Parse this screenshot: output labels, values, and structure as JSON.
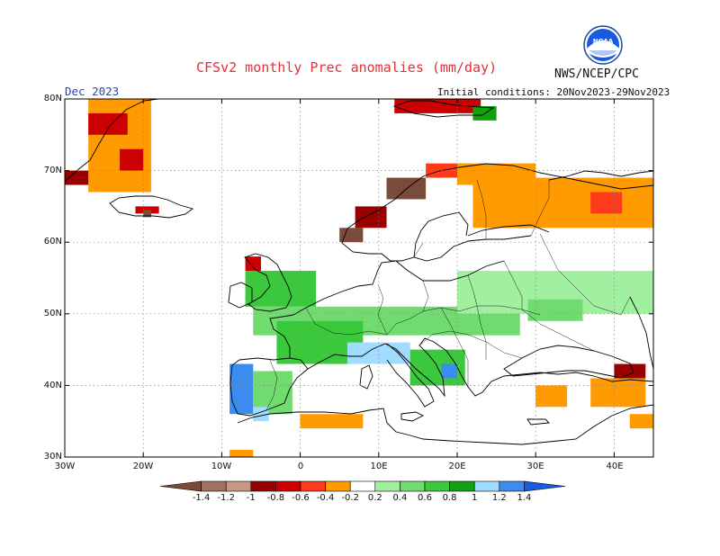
{
  "header": {
    "title": "CFSv2 monthly Prec anomalies (mm/day)",
    "agency": "NWS/NCEP/CPC",
    "month": "Dec 2023",
    "initial_conditions": "Initial conditions: 20Nov2023-29Nov2023",
    "logo_text": "NOAA"
  },
  "map": {
    "lat_range": [
      30,
      80
    ],
    "lon_range": [
      -30,
      45
    ],
    "lat_labels": [
      "80N",
      "70N",
      "60N",
      "50N",
      "40N",
      "30N"
    ],
    "lon_labels": [
      "30W",
      "20W",
      "10W",
      "0",
      "10E",
      "20E",
      "30E",
      "40E"
    ],
    "grid": true
  },
  "legend": {
    "labels": [
      "-1.4",
      "-1.2",
      "-1",
      "-0.8",
      "-0.6",
      "-0.4",
      "-0.2",
      "0.2",
      "0.4",
      "0.6",
      "0.8",
      "1",
      "1.2",
      "1.4"
    ],
    "colors": [
      "#7a4a3a",
      "#a07060",
      "#c89880",
      "#9a0000",
      "#cc0000",
      "#ff3a1a",
      "#ff9a00",
      "#ffffff",
      "#a0f0a0",
      "#70dc70",
      "#3cc83c",
      "#10a010",
      "#a0dcff",
      "#3c8cf0",
      "#1a5adc"
    ]
  },
  "anomaly_regions": [
    {
      "lon": [
        -27,
        -19
      ],
      "lat": [
        67,
        80
      ],
      "color": "#ff9a00"
    },
    {
      "lon": [
        -27,
        -22
      ],
      "lat": [
        75,
        78
      ],
      "color": "#cc0000"
    },
    {
      "lon": [
        -23,
        -20
      ],
      "lat": [
        70,
        73
      ],
      "color": "#cc0000"
    },
    {
      "lon": [
        -30,
        -27
      ],
      "lat": [
        68,
        70
      ],
      "color": "#9a0000"
    },
    {
      "lon": [
        -21,
        -18
      ],
      "lat": [
        64,
        65
      ],
      "color": "#cc0000"
    },
    {
      "lon": [
        -20,
        -19
      ],
      "lat": [
        63.5,
        64.5
      ],
      "color": "#7a4a3a"
    },
    {
      "lon": [
        -7,
        -5
      ],
      "lat": [
        56,
        58
      ],
      "color": "#cc0000"
    },
    {
      "lon": [
        5,
        8
      ],
      "lat": [
        60,
        62
      ],
      "color": "#7a4a3a"
    },
    {
      "lon": [
        7,
        11
      ],
      "lat": [
        62,
        65
      ],
      "color": "#9a0000"
    },
    {
      "lon": [
        11,
        16
      ],
      "lat": [
        66,
        69
      ],
      "color": "#7a4a3a"
    },
    {
      "lon": [
        16,
        22
      ],
      "lat": [
        69,
        71
      ],
      "color": "#ff3a1a"
    },
    {
      "lon": [
        20,
        30
      ],
      "lat": [
        68,
        71
      ],
      "color": "#ff9a00"
    },
    {
      "lon": [
        24,
        29
      ],
      "lat": [
        62,
        66
      ],
      "color": "#ff3a1a"
    },
    {
      "lon": [
        22,
        45
      ],
      "lat": [
        62,
        69
      ],
      "color": "#ff9a00"
    },
    {
      "lon": [
        37,
        41
      ],
      "lat": [
        64,
        67
      ],
      "color": "#ff3a1a"
    },
    {
      "lon": [
        12,
        23
      ],
      "lat": [
        78,
        80
      ],
      "color": "#cc0000"
    },
    {
      "lon": [
        22,
        25
      ],
      "lat": [
        77,
        79
      ],
      "color": "#10a010"
    },
    {
      "lon": [
        -7,
        2
      ],
      "lat": [
        51,
        56
      ],
      "color": "#3cc83c"
    },
    {
      "lon": [
        -6,
        28
      ],
      "lat": [
        47,
        51
      ],
      "color": "#70dc70"
    },
    {
      "lon": [
        -3,
        8
      ],
      "lat": [
        43,
        49
      ],
      "color": "#3cc83c"
    },
    {
      "lon": [
        6,
        14
      ],
      "lat": [
        43,
        46
      ],
      "color": "#a0dcff"
    },
    {
      "lon": [
        14,
        21
      ],
      "lat": [
        40,
        45
      ],
      "color": "#3cc83c"
    },
    {
      "lon": [
        18,
        20
      ],
      "lat": [
        41,
        43
      ],
      "color": "#3c8cf0"
    },
    {
      "lon": [
        20,
        45
      ],
      "lat": [
        50,
        56
      ],
      "color": "#a0f0a0"
    },
    {
      "lon": [
        29,
        36
      ],
      "lat": [
        49,
        52
      ],
      "color": "#70dc70"
    },
    {
      "lon": [
        -9,
        -6
      ],
      "lat": [
        36,
        43
      ],
      "color": "#3c8cf0"
    },
    {
      "lon": [
        -6,
        -1
      ],
      "lat": [
        36,
        42
      ],
      "color": "#70dc70"
    },
    {
      "lon": [
        -6,
        -4
      ],
      "lat": [
        35,
        37
      ],
      "color": "#a0dcff"
    },
    {
      "lon": [
        0,
        8
      ],
      "lat": [
        34,
        36
      ],
      "color": "#ff9a00"
    },
    {
      "lon": [
        30,
        34
      ],
      "lat": [
        37,
        40
      ],
      "color": "#ff9a00"
    },
    {
      "lon": [
        37,
        44
      ],
      "lat": [
        37,
        41
      ],
      "color": "#ff9a00"
    },
    {
      "lon": [
        40,
        44
      ],
      "lat": [
        41,
        43
      ],
      "color": "#9a0000"
    },
    {
      "lon": [
        42,
        45
      ],
      "lat": [
        34,
        36
      ],
      "color": "#ff9a00"
    },
    {
      "lon": [
        -9,
        -6
      ],
      "lat": [
        30,
        31
      ],
      "color": "#ff9a00"
    }
  ]
}
